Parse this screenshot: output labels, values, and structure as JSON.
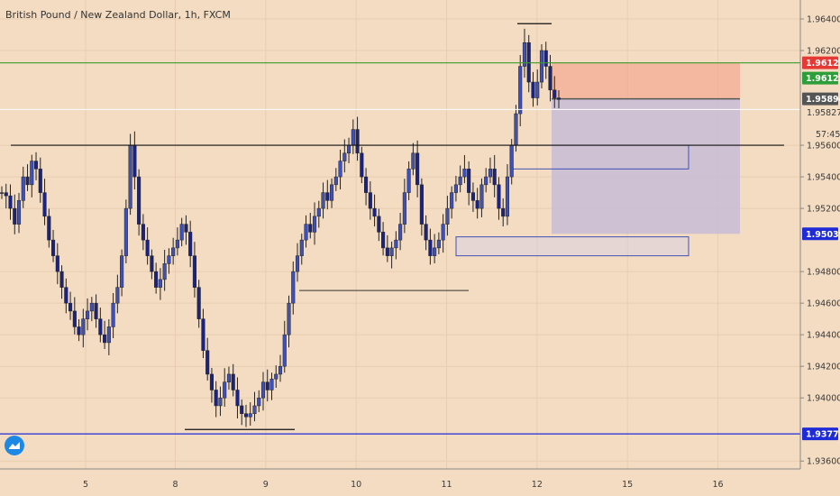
{
  "chart_data": {
    "type": "candlestick",
    "title": "British Pound / New Zealand Dollar, 1h, FXCM",
    "ylim": [
      1.9355,
      1.9652
    ],
    "y_ticks": [
      "1.96400",
      "1.96200",
      "1.95600",
      "1.95400",
      "1.95200",
      "1.94800",
      "1.94600",
      "1.94400",
      "1.94200",
      "1.94000",
      "1.93600"
    ],
    "y_tick_values": [
      1.964,
      1.962,
      1.956,
      1.954,
      1.952,
      1.948,
      1.946,
      1.944,
      1.942,
      1.94,
      1.936
    ],
    "x_ticks": [
      "5",
      "8",
      "9",
      "10",
      "11",
      "12",
      "15",
      "16"
    ],
    "x_tick_positions": [
      0.107,
      0.219,
      0.332,
      0.445,
      0.558,
      0.671,
      0.784,
      0.897
    ],
    "countdown": "57:45",
    "price_labels": [
      {
        "value": "1.96122",
        "price": 1.96122,
        "color": "#e53935",
        "name": "stop-loss-label"
      },
      {
        "value": "1.96122",
        "price": 1.96122,
        "color": "#2e9e3a",
        "name": "green-line-label"
      },
      {
        "value": "1.95894",
        "price": 1.95894,
        "color": "#555555",
        "name": "entry-label"
      },
      {
        "value": "1.95827",
        "price": 1.95827,
        "color": "none",
        "name": "current-price-label"
      },
      {
        "value": "1.95039",
        "price": 1.95039,
        "color": "#1e2bd6",
        "name": "target-label"
      },
      {
        "value": "1.93772",
        "price": 1.93772,
        "color": "#1e2bd6",
        "name": "support-line-label"
      }
    ],
    "horizontal_lines": [
      {
        "price": 1.96122,
        "color": "#3c9a2e",
        "name": "green-resistance-line"
      },
      {
        "price": 1.956,
        "color": "#111111",
        "name": "black-resistance-line"
      },
      {
        "price": 1.93772,
        "color": "#1e2bd6",
        "name": "blue-support-line"
      },
      {
        "price": 1.95827,
        "color": "#ffffff",
        "name": "current-price-line"
      }
    ],
    "candles_seed": [
      1.953,
      1.9528,
      1.952,
      1.951,
      1.9525,
      1.954,
      1.9535,
      1.955,
      1.9545,
      1.953,
      1.9515,
      1.95,
      1.949,
      1.948,
      1.947,
      1.946,
      1.9455,
      1.9445,
      1.944,
      1.945,
      1.9455,
      1.946,
      1.945,
      1.944,
      1.9435,
      1.9445,
      1.946,
      1.947,
      1.949,
      1.952,
      1.956,
      1.954,
      1.951,
      1.95,
      1.949,
      1.948,
      1.947,
      1.9475,
      1.9485,
      1.949,
      1.9495,
      1.95,
      1.951,
      1.9505,
      1.949,
      1.947,
      1.945,
      1.943,
      1.9415,
      1.9405,
      1.9395,
      1.94,
      1.941,
      1.9415,
      1.9405,
      1.9395,
      1.939,
      1.9388,
      1.939,
      1.9395,
      1.94,
      1.941,
      1.9405,
      1.9412,
      1.9415,
      1.942,
      1.944,
      1.946,
      1.948,
      1.949,
      1.95,
      1.951,
      1.9505,
      1.9515,
      1.952,
      1.953,
      1.9525,
      1.9535,
      1.954,
      1.955,
      1.9555,
      1.956,
      1.957,
      1.9555,
      1.954,
      1.953,
      1.952,
      1.9515,
      1.9505,
      1.9495,
      1.949,
      1.9495,
      1.95,
      1.951,
      1.953,
      1.9545,
      1.9555,
      1.9535,
      1.951,
      1.95,
      1.949,
      1.9495,
      1.95,
      1.951,
      1.952,
      1.953,
      1.9535,
      1.954,
      1.9545,
      1.953,
      1.9525,
      1.952,
      1.9535,
      1.954,
      1.9545,
      1.9535,
      1.952,
      1.9515,
      1.954,
      1.956,
      1.958,
      1.961,
      1.9625,
      1.96,
      1.959,
      1.96,
      1.962,
      1.961,
      1.9595,
      1.959,
      1.9589
    ]
  }
}
